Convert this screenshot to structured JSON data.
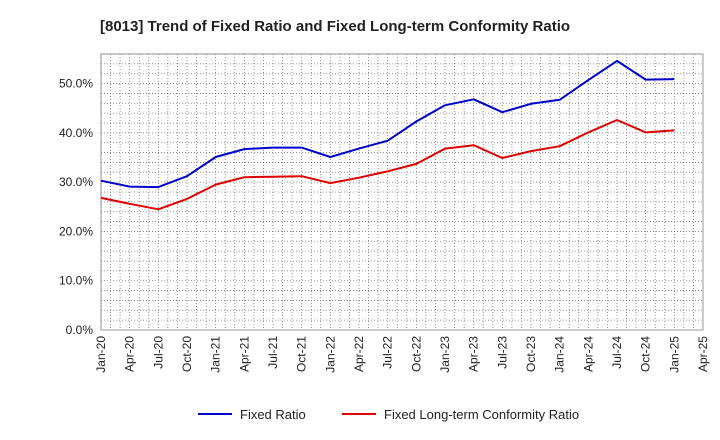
{
  "chart_data": {
    "type": "line",
    "title": "[8013]  Trend of Fixed Ratio and Fixed Long-term Conformity Ratio",
    "xlabel": "",
    "ylabel": "",
    "x_tick_labels": [
      "Jan-20",
      "Apr-20",
      "Jul-20",
      "Oct-20",
      "Jan-21",
      "Apr-21",
      "Jul-21",
      "Oct-21",
      "Jan-22",
      "Apr-22",
      "Jul-22",
      "Oct-22",
      "Jan-23",
      "Apr-23",
      "Jul-23",
      "Oct-23",
      "Jan-24",
      "Apr-24",
      "Jul-24",
      "Oct-24",
      "Jan-25",
      "Apr-25"
    ],
    "y_tick_labels": [
      "0.0%",
      "10.0%",
      "20.0%",
      "30.0%",
      "40.0%",
      "50.0%"
    ],
    "ylim": [
      0,
      56
    ],
    "grid": true,
    "legend_position": "bottom",
    "series": [
      {
        "name": "Fixed Ratio",
        "color": "#0000cc",
        "x": [
          "Jan-20",
          "Apr-20",
          "Jul-20",
          "Oct-20",
          "Jan-21",
          "Apr-21",
          "Jul-21",
          "Oct-21",
          "Jan-22",
          "Apr-22",
          "Jul-22",
          "Oct-22",
          "Jan-23",
          "Apr-23",
          "Jul-23",
          "Oct-23",
          "Jan-24",
          "Apr-24",
          "Jul-24",
          "Oct-24",
          "Jan-25"
        ],
        "values": [
          30.3,
          29.1,
          29.0,
          31.2,
          35.1,
          36.7,
          37.0,
          37.0,
          35.1,
          36.8,
          38.4,
          42.3,
          45.6,
          46.8,
          44.2,
          45.9,
          46.7,
          50.7,
          54.6,
          50.8,
          50.9
        ]
      },
      {
        "name": "Fixed Long-term Conformity Ratio",
        "color": "#e00000",
        "x": [
          "Jan-20",
          "Apr-20",
          "Jul-20",
          "Oct-20",
          "Jan-21",
          "Apr-21",
          "Jul-21",
          "Oct-21",
          "Jan-22",
          "Apr-22",
          "Jul-22",
          "Oct-22",
          "Jan-23",
          "Apr-23",
          "Jul-23",
          "Oct-23",
          "Jan-24",
          "Apr-24",
          "Jul-24",
          "Oct-24",
          "Jan-25"
        ],
        "values": [
          26.8,
          25.6,
          24.5,
          26.6,
          29.5,
          31.0,
          31.1,
          31.2,
          29.8,
          30.9,
          32.2,
          33.7,
          36.8,
          37.5,
          34.9,
          36.3,
          37.3,
          40.1,
          42.6,
          40.1,
          40.5
        ]
      }
    ]
  }
}
